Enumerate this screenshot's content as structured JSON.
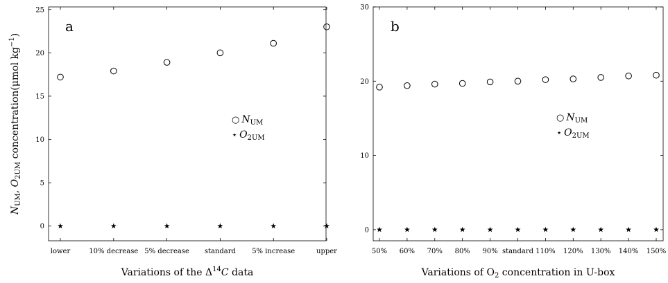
{
  "chart_data": [
    {
      "type": "scatter",
      "panel_label": "a",
      "categories": [
        "lower",
        "10% decrease",
        "5% decrease",
        "standard",
        "5% increase",
        "upper"
      ],
      "ylim": [
        -1.7,
        25.3
      ],
      "yticks": [
        0,
        5,
        10,
        15,
        20,
        25
      ],
      "ylabel": {
        "n": "N",
        "n_sub": "UM",
        "sep": ", ",
        "o": "O",
        "o_sub": "2UM",
        "rest": " concentration(μmol kg",
        "exp": "−1",
        "close": ")"
      },
      "xlabel": {
        "prefix": "Variations of the Δ",
        "sup": "14",
        "var": "C",
        "suffix": " data"
      },
      "series": [
        {
          "name": "N_UM",
          "marker": "circle",
          "values": [
            17.2,
            17.9,
            18.9,
            20.0,
            21.1,
            23.0
          ]
        },
        {
          "name": "O_2UM",
          "marker": "star",
          "values": [
            0,
            0,
            0,
            0,
            0,
            0
          ]
        }
      ],
      "legend": {
        "placement": "right",
        "entries": [
          {
            "symbol": "○",
            "main": "N",
            "sub": "UM"
          },
          {
            "symbol": "⋆",
            "main": "O",
            "sub": "2UM"
          }
        ]
      },
      "grid": false
    },
    {
      "type": "scatter",
      "panel_label": "b",
      "categories": [
        "50%",
        "60%",
        "70%",
        "80%",
        "90%",
        "standard",
        "110%",
        "120%",
        "130%",
        "140%",
        "150%"
      ],
      "ylim": [
        -1.5,
        30
      ],
      "yticks": [
        0,
        10,
        20,
        30
      ],
      "xlabel": {
        "prefix": "Variations of O",
        "sub": "2",
        "suffix": " concentration in U-box"
      },
      "series": [
        {
          "name": "N_UM",
          "marker": "circle",
          "values": [
            19.2,
            19.4,
            19.6,
            19.7,
            19.9,
            20.0,
            20.2,
            20.3,
            20.5,
            20.7,
            20.8
          ]
        },
        {
          "name": "O_2UM",
          "marker": "star",
          "values": [
            0,
            0,
            0,
            0,
            0,
            0,
            0,
            0,
            0,
            0,
            0
          ]
        }
      ],
      "legend": {
        "placement": "right",
        "entries": [
          {
            "symbol": "○",
            "main": "N",
            "sub": "UM"
          },
          {
            "symbol": "⋆",
            "main": "O",
            "sub": "2UM"
          }
        ]
      },
      "grid": false
    }
  ]
}
